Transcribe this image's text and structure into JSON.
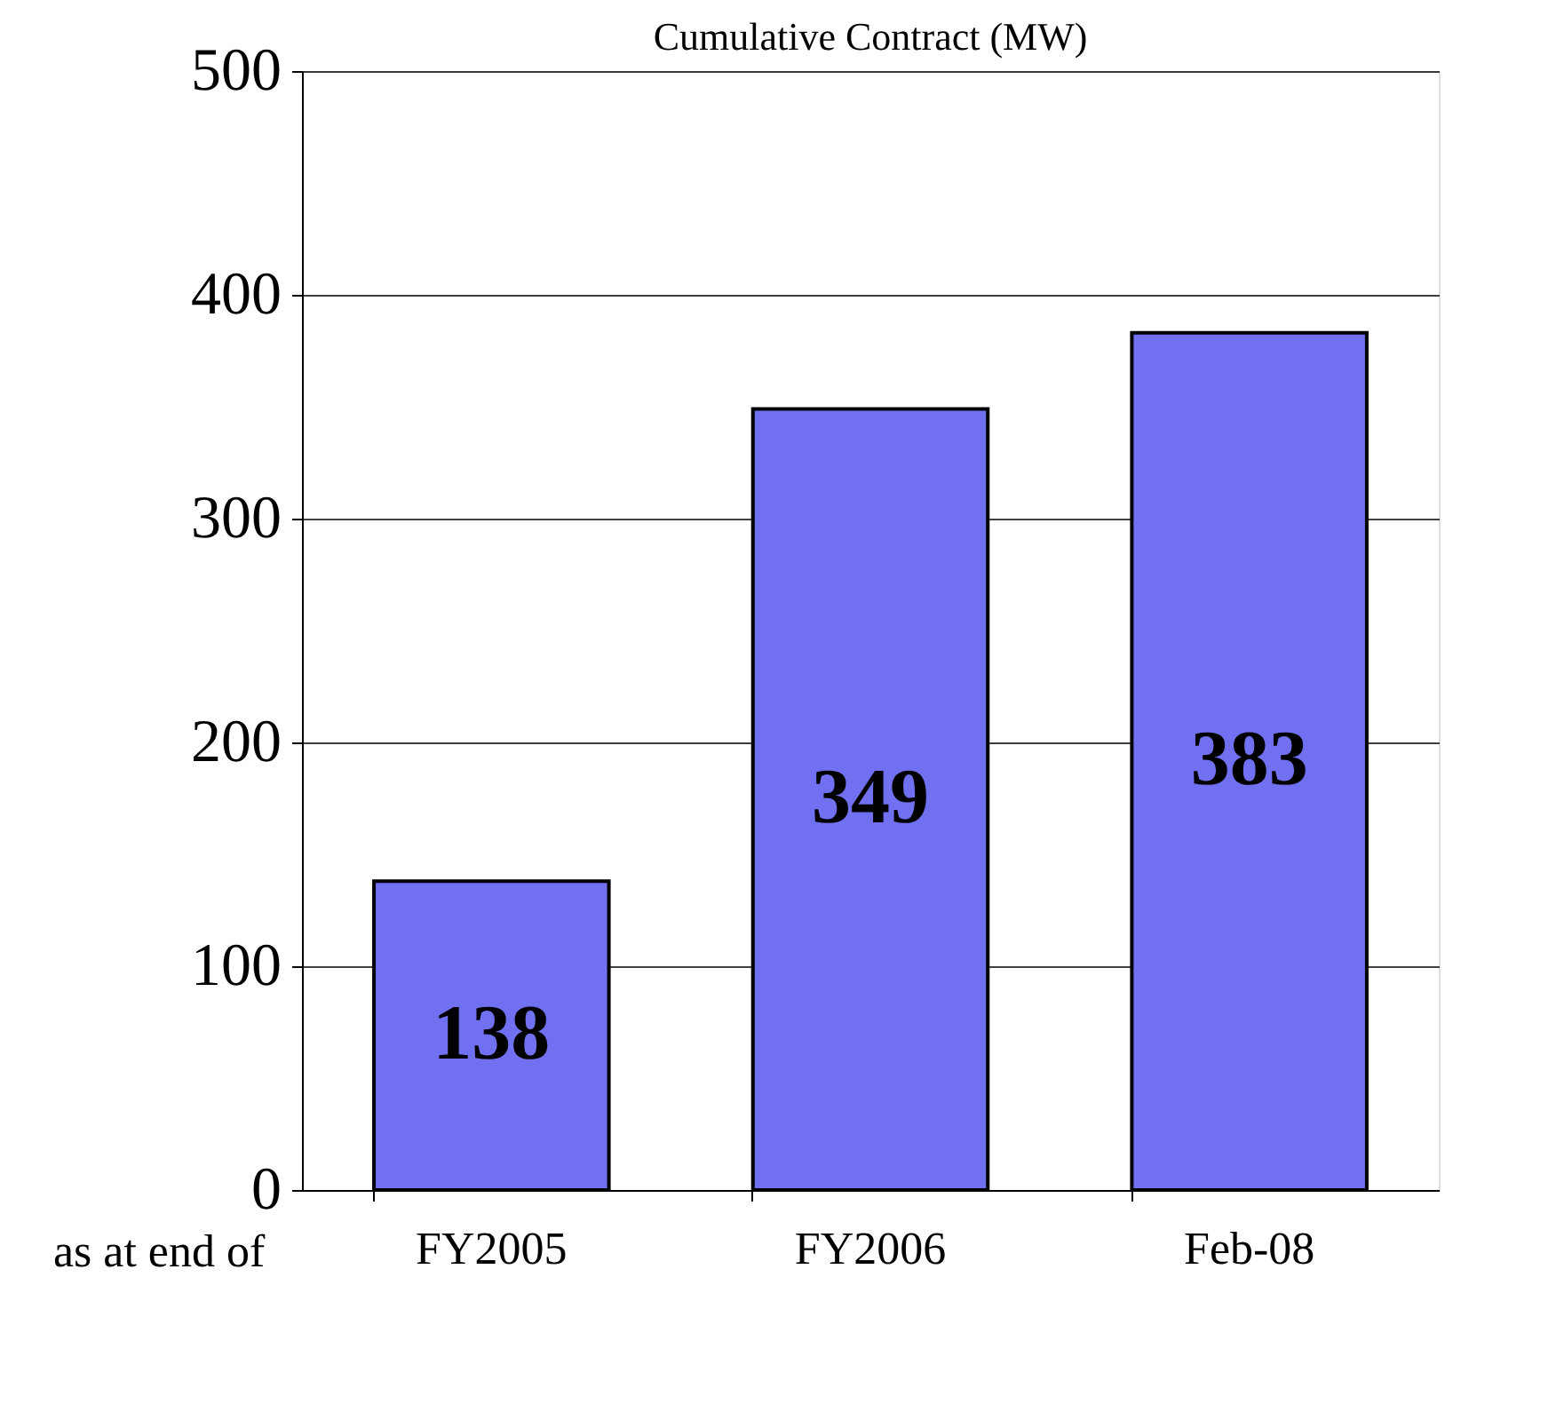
{
  "chart_data": {
    "type": "bar",
    "title": "Cumulative Contract (MW)",
    "categories": [
      "FY2005",
      "FY2006",
      "Feb-08"
    ],
    "values": [
      138,
      349,
      383
    ],
    "color": "#7070f0",
    "ylim": [
      0,
      500
    ],
    "yticks": [
      0,
      100,
      200,
      300,
      400,
      500
    ],
    "grid": "y",
    "data_labels": true,
    "annotations": [
      "as at end of"
    ]
  }
}
